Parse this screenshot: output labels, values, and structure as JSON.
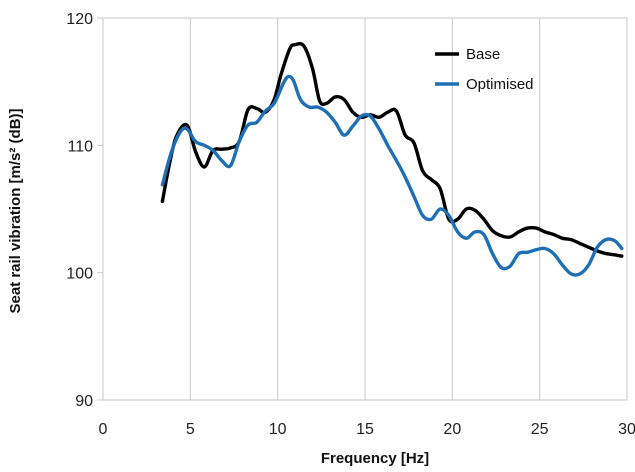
{
  "chart_data": {
    "type": "line",
    "title": "",
    "xlabel": "Frequency [Hz]",
    "ylabel": "Seat rail vibration [m/s² (dB)]",
    "xlim": [
      0,
      30
    ],
    "ylim": [
      90,
      120
    ],
    "x_ticks": [
      "0",
      "5",
      "10",
      "15",
      "20",
      "25",
      "30"
    ],
    "y_ticks": [
      "90",
      "100",
      "110",
      "120"
    ],
    "grid": "vertical",
    "legend_position": "top-right",
    "series": [
      {
        "name": "Base",
        "color": "#000000",
        "x": [
          3.4,
          3.8,
          4.2,
          4.8,
          5.3,
          5.8,
          6.3,
          6.8,
          7.3,
          7.8,
          8.3,
          8.8,
          9.3,
          9.8,
          10.2,
          10.7,
          11.0,
          11.5,
          12.0,
          12.4,
          12.8,
          13.3,
          13.8,
          14.3,
          14.8,
          15.3,
          15.8,
          16.3,
          16.8,
          17.3,
          17.8,
          18.3,
          18.8,
          19.3,
          19.8,
          20.3,
          20.8,
          21.3,
          21.8,
          22.3,
          22.8,
          23.3,
          23.8,
          24.3,
          24.8,
          25.3,
          25.8,
          26.3,
          26.8,
          27.3,
          27.8,
          28.3,
          28.8,
          29.3,
          29.7
        ],
        "y": [
          105.6,
          108.5,
          110.7,
          111.6,
          109.5,
          108.3,
          109.6,
          109.7,
          109.8,
          110.3,
          112.8,
          112.9,
          112.6,
          113.6,
          115.6,
          117.6,
          117.9,
          117.8,
          116.0,
          113.5,
          113.3,
          113.8,
          113.6,
          112.6,
          112.2,
          112.4,
          112.2,
          112.6,
          112.7,
          110.8,
          110.2,
          108.0,
          107.3,
          106.6,
          104.2,
          104.2,
          105.0,
          104.9,
          104.2,
          103.3,
          102.9,
          102.8,
          103.2,
          103.5,
          103.5,
          103.2,
          103.0,
          102.7,
          102.6,
          102.3,
          102.0,
          101.7,
          101.5,
          101.4,
          101.3
        ]
      },
      {
        "name": "Optimised",
        "color": "#1f6fb5",
        "x": [
          3.4,
          3.9,
          4.4,
          4.8,
          5.3,
          5.8,
          6.3,
          6.8,
          7.3,
          7.8,
          8.3,
          8.8,
          9.3,
          9.8,
          10.3,
          10.6,
          10.9,
          11.3,
          11.8,
          12.3,
          12.8,
          13.3,
          13.8,
          14.3,
          14.8,
          15.3,
          15.8,
          16.3,
          16.8,
          17.3,
          17.8,
          18.3,
          18.8,
          19.3,
          19.8,
          20.3,
          20.8,
          21.3,
          21.8,
          22.3,
          22.8,
          23.3,
          23.8,
          24.3,
          24.8,
          25.3,
          25.8,
          26.3,
          26.8,
          27.3,
          27.8,
          28.3,
          28.8,
          29.3,
          29.7
        ],
        "y": [
          106.9,
          109.4,
          111.0,
          111.3,
          110.3,
          110.0,
          109.6,
          108.8,
          108.4,
          110.3,
          111.6,
          111.8,
          112.7,
          113.3,
          114.8,
          115.4,
          115.1,
          113.6,
          113.0,
          113.0,
          112.6,
          111.8,
          110.8,
          111.5,
          112.3,
          112.3,
          111.3,
          110.0,
          108.8,
          107.5,
          106.0,
          104.5,
          104.2,
          105.0,
          104.5,
          103.2,
          102.7,
          103.2,
          103.0,
          101.5,
          100.4,
          100.5,
          101.5,
          101.6,
          101.8,
          101.9,
          101.5,
          100.6,
          99.9,
          99.9,
          100.6,
          102.0,
          102.6,
          102.5,
          101.9
        ]
      }
    ]
  }
}
